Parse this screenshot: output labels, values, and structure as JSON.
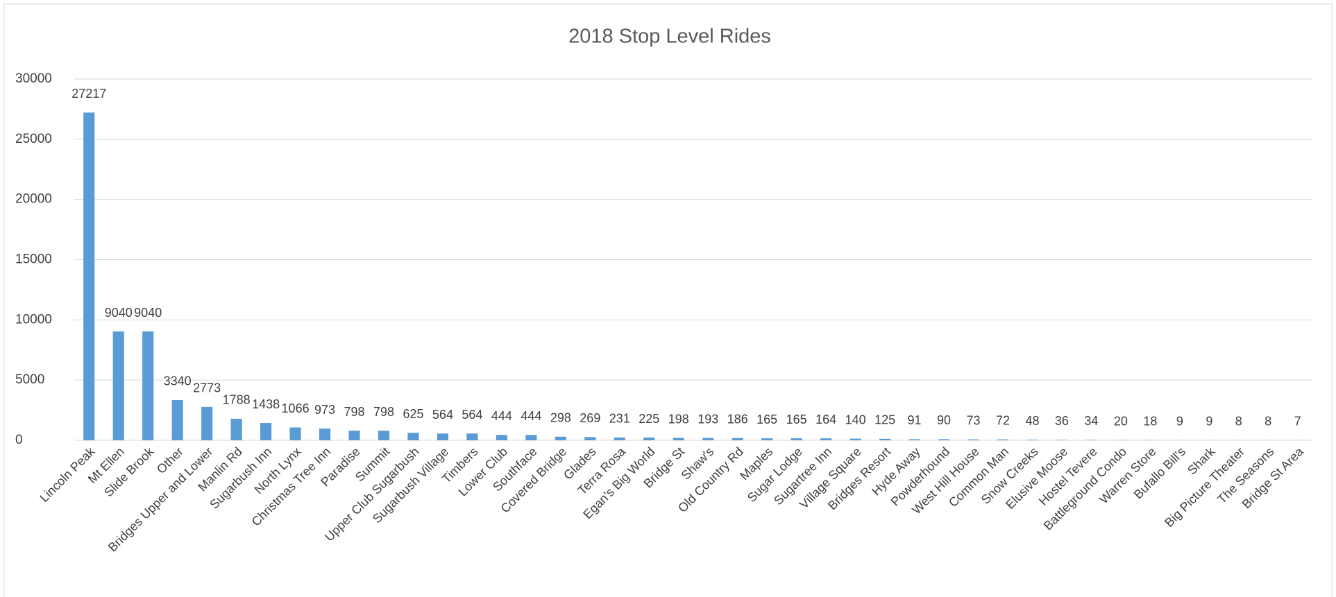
{
  "chart_data": {
    "type": "bar",
    "title": "2018 Stop Level Rides",
    "categories": [
      "Lincoln Peak",
      "Mt Ellen",
      "Slide Brook",
      "Other",
      "Bridges Upper and Lower",
      "Manlin Rd",
      "Sugarbush Inn",
      "North Lynx",
      "Christmas Tree Inn",
      "Paradise",
      "Summit",
      "Upper Club Sugarbush",
      "Sugarbush Village",
      "Timbers",
      "Lower Club",
      "Southface",
      "Covered Bridge",
      "Glades",
      "Terra Rosa",
      "Egan's Big World",
      "Bridge St",
      "Shaw's",
      "Old Country Rd",
      "Maples",
      "Sugar Lodge",
      "Sugartree Inn",
      "Village Square",
      "Bridges Resort",
      "Hyde Away",
      "Powderhound",
      "West Hill House",
      "Common Man",
      "Snow Creeks",
      "Elusive Moose",
      "Hostel Tevere",
      "Battleground Condo",
      "Warren Store",
      "Bufallo Bill's",
      "Shark",
      "Big Picture Theater",
      "The Seasons",
      "Bridge St Area"
    ],
    "values": [
      27217,
      9040,
      9040,
      3340,
      2773,
      1788,
      1438,
      1066,
      973,
      798,
      798,
      625,
      564,
      564,
      444,
      444,
      298,
      269,
      231,
      225,
      198,
      193,
      186,
      165,
      165,
      164,
      140,
      125,
      91,
      90,
      73,
      72,
      48,
      36,
      34,
      20,
      18,
      9,
      9,
      8,
      8,
      7
    ],
    "color": "#5b9bd5",
    "ylim": [
      0,
      30000
    ],
    "yticks": [
      0,
      5000,
      10000,
      15000,
      20000,
      25000,
      30000
    ],
    "grid": true
  }
}
